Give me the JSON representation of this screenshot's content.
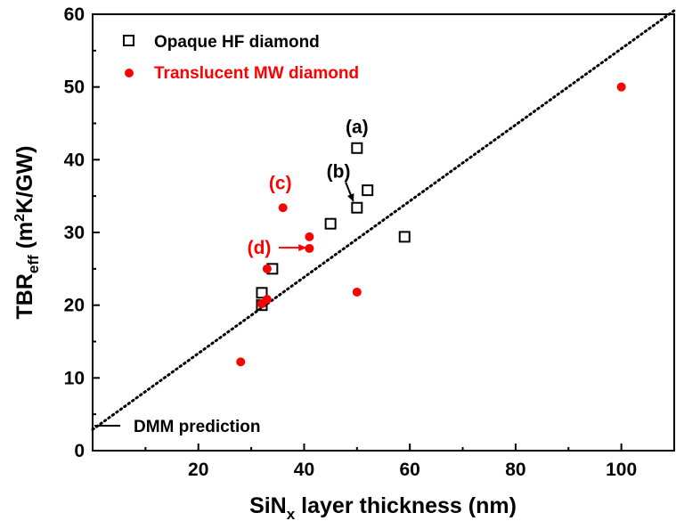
{
  "chart_data": {
    "type": "scatter",
    "title": "",
    "xlabel": "SiN",
    "xlabel_sub": "x",
    "xlabel_rest": " layer thickness (nm)",
    "ylabel": "TBR",
    "ylabel_sub": "eff",
    "ylabel_rest": " (m",
    "ylabel_sup": "2",
    "ylabel_end": "K/GW)",
    "xlim": [
      0,
      110
    ],
    "ylim": [
      0,
      60
    ],
    "x_ticks": [
      20,
      40,
      60,
      80,
      100
    ],
    "y_ticks": [
      0,
      10,
      20,
      30,
      40,
      50,
      60
    ],
    "grid": false,
    "legend_position": "top-left",
    "series": [
      {
        "name": "Opaque HF diamond",
        "marker": "open-square",
        "color": "#000000",
        "points": [
          {
            "x": 32,
            "y": 20.0
          },
          {
            "x": 32,
            "y": 21.7
          },
          {
            "x": 34,
            "y": 25.0
          },
          {
            "x": 45,
            "y": 31.2
          },
          {
            "x": 50,
            "y": 33.4
          },
          {
            "x": 52,
            "y": 35.8
          },
          {
            "x": 50,
            "y": 41.6
          },
          {
            "x": 59,
            "y": 29.4
          }
        ]
      },
      {
        "name": "Translucent MW diamond",
        "marker": "filled-circle",
        "color": "#ff0000",
        "points": [
          {
            "x": 28,
            "y": 12.2
          },
          {
            "x": 32,
            "y": 20.2
          },
          {
            "x": 33,
            "y": 20.8
          },
          {
            "x": 33,
            "y": 25.0
          },
          {
            "x": 36,
            "y": 33.4
          },
          {
            "x": 41,
            "y": 29.4
          },
          {
            "x": 41,
            "y": 27.8
          },
          {
            "x": 50,
            "y": 21.8
          },
          {
            "x": 100,
            "y": 50.0
          }
        ]
      }
    ],
    "dmm_line": {
      "label": "DMM prediction",
      "style": "dotted",
      "color": "#000000",
      "points": [
        {
          "x": 0,
          "y": 2.9
        },
        {
          "x": 110,
          "y": 60.5
        }
      ]
    },
    "annotations": [
      {
        "text": "(a)",
        "color": "#000000",
        "anchor_x": 50,
        "anchor_y": 44.5
      },
      {
        "text": "(b)",
        "color": "#000000",
        "anchor_x": 46.5,
        "anchor_y": 38.4,
        "arrow_to": {
          "x": 49.3,
          "y": 34.3
        }
      },
      {
        "text": "(c)",
        "color": "#ff0000",
        "anchor_x": 35.5,
        "anchor_y": 36.8
      },
      {
        "text": "(d)",
        "color": "#ff0000",
        "anchor_x": 31.5,
        "anchor_y": 27.9,
        "arrow_to": {
          "x": 40.3,
          "y": 27.9
        }
      }
    ]
  }
}
